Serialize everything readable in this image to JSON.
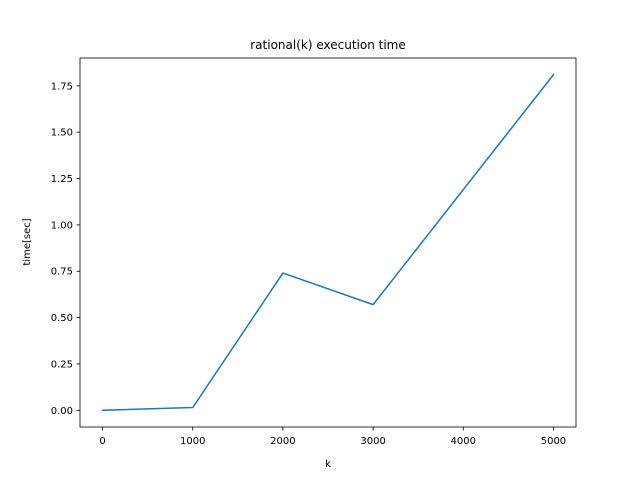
{
  "chart_data": {
    "type": "line",
    "title": "rational(k) execution time",
    "xlabel": "k",
    "ylabel": "time[sec]",
    "xlim": [
      -250,
      5250
    ],
    "ylim": [
      -0.09,
      1.9
    ],
    "x_ticks": [
      0,
      1000,
      2000,
      3000,
      4000,
      5000
    ],
    "x_tick_labels": [
      "0",
      "1000",
      "2000",
      "3000",
      "4000",
      "5000"
    ],
    "y_ticks": [
      0.0,
      0.25,
      0.5,
      0.75,
      1.0,
      1.25,
      1.5,
      1.75
    ],
    "y_tick_labels": [
      "0.00",
      "0.25",
      "0.50",
      "0.75",
      "1.00",
      "1.25",
      "1.50",
      "1.75"
    ],
    "grid": false,
    "series": [
      {
        "color": "#1f77b4",
        "x": [
          0,
          1000,
          2000,
          3000,
          5000
        ],
        "y": [
          0.0,
          0.015,
          0.74,
          0.57,
          1.81
        ]
      }
    ]
  }
}
